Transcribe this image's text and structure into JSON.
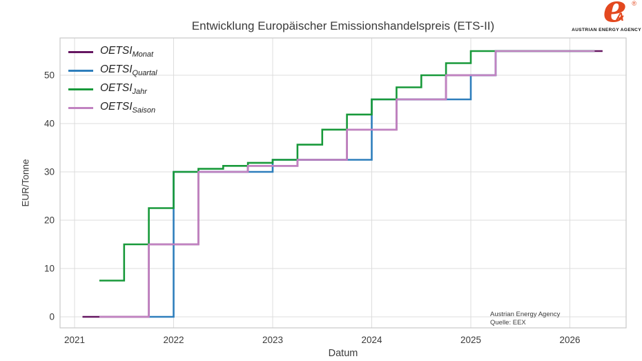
{
  "chart_data": {
    "type": "line",
    "step": "post",
    "title": "Entwicklung Europäischer Emissionshandelspreis (ETS-II)",
    "xlabel": "Datum",
    "ylabel": "EUR/Tonne",
    "grid": true,
    "legend_position": "upper left",
    "x_ticks": [
      2021,
      2022,
      2023,
      2024,
      2025,
      2026
    ],
    "y_ticks": [
      0,
      10,
      20,
      30,
      40,
      50
    ],
    "xlim": [
      2020.85,
      2026.57
    ],
    "ylim": [
      -2.3,
      57.7
    ],
    "annotations": [
      "Austrian Energy Agency",
      "Quelle: EEX"
    ],
    "series": [
      {
        "key": "monat",
        "name": "OETSI_Monat",
        "legend_main": "OETSI",
        "legend_sub": "Monat",
        "color": "#651661",
        "points": [
          [
            2021.08,
            0
          ],
          [
            2021.75,
            15
          ],
          [
            2022.25,
            30
          ],
          [
            2022.75,
            31.25
          ],
          [
            2023.25,
            32.5
          ],
          [
            2023.75,
            38.75
          ],
          [
            2024.25,
            45
          ],
          [
            2024.75,
            50
          ],
          [
            2025.25,
            55
          ],
          [
            2026.33,
            55
          ]
        ]
      },
      {
        "key": "quartal",
        "name": "OETSI_Quartal",
        "legend_main": "OETSI",
        "legend_sub": "Quartal",
        "color": "#2e7ebc",
        "points": [
          [
            2021.75,
            0
          ],
          [
            2022,
            30
          ],
          [
            2023,
            32.5
          ],
          [
            2024,
            45
          ],
          [
            2025,
            50
          ],
          [
            2025.25,
            55
          ],
          [
            2026.25,
            55
          ]
        ]
      },
      {
        "key": "jahr",
        "name": "OETSI_Jahr",
        "legend_main": "OETSI",
        "legend_sub": "Jahr",
        "color": "#18993a",
        "points": [
          [
            2021.25,
            7.5
          ],
          [
            2021.5,
            15
          ],
          [
            2021.75,
            22.5
          ],
          [
            2022,
            30
          ],
          [
            2022.25,
            30.625
          ],
          [
            2022.5,
            31.25
          ],
          [
            2022.75,
            31.875
          ],
          [
            2023,
            32.5
          ],
          [
            2023.25,
            35.625
          ],
          [
            2023.5,
            38.75
          ],
          [
            2023.75,
            41.875
          ],
          [
            2024,
            45
          ],
          [
            2024.25,
            47.5
          ],
          [
            2024.5,
            50
          ],
          [
            2024.75,
            52.5
          ],
          [
            2025,
            55
          ],
          [
            2026.25,
            55
          ]
        ]
      },
      {
        "key": "saison",
        "name": "OETSI_Saison",
        "legend_main": "OETSI",
        "legend_sub": "Saison",
        "color": "#c182c1",
        "points": [
          [
            2021.25,
            0
          ],
          [
            2021.75,
            15
          ],
          [
            2022.25,
            30
          ],
          [
            2022.75,
            31.25
          ],
          [
            2023.25,
            32.5
          ],
          [
            2023.75,
            38.75
          ],
          [
            2024.25,
            45
          ],
          [
            2024.75,
            50
          ],
          [
            2025.25,
            55
          ],
          [
            2026.25,
            55
          ]
        ]
      }
    ]
  },
  "logo": {
    "glyph": "e",
    "letter": "A",
    "registered": "®",
    "caption": "AUSTRIAN ENERGY AGENCY"
  },
  "style": {
    "grid_color": "#dcdcdc",
    "spine_color": "#c9c9c9",
    "line_width": 2.6
  }
}
